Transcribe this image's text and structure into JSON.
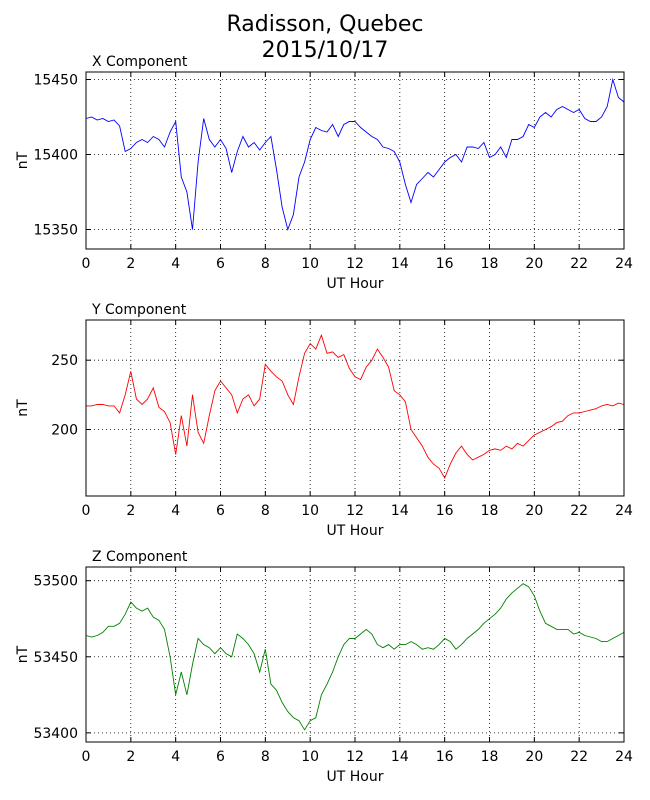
{
  "figure": {
    "title_line1": "Radisson, Quebec",
    "title_line2": "2015/10/17"
  },
  "chart_data": [
    {
      "type": "line",
      "title": "X Component",
      "xlabel": "UT Hour",
      "ylabel": "nT",
      "color": "#0000ff",
      "xlim": [
        0,
        24
      ],
      "ylim": [
        15337,
        15455
      ],
      "xticks": [
        0,
        2,
        4,
        6,
        8,
        10,
        12,
        14,
        16,
        18,
        20,
        22,
        24
      ],
      "yticks": [
        15350,
        15400,
        15450
      ],
      "grid": true,
      "x": [
        0,
        0.25,
        0.5,
        0.75,
        1,
        1.25,
        1.5,
        1.75,
        2,
        2.25,
        2.5,
        2.75,
        3,
        3.25,
        3.5,
        3.75,
        4,
        4.25,
        4.5,
        4.75,
        5,
        5.25,
        5.5,
        5.75,
        6,
        6.25,
        6.5,
        6.75,
        7,
        7.25,
        7.5,
        7.75,
        8,
        8.25,
        8.5,
        8.75,
        9,
        9.25,
        9.5,
        9.75,
        10,
        10.25,
        10.5,
        10.75,
        11,
        11.25,
        11.5,
        11.75,
        12,
        12.25,
        12.5,
        12.75,
        13,
        13.25,
        13.5,
        13.75,
        14,
        14.25,
        14.5,
        14.75,
        15,
        15.25,
        15.5,
        15.75,
        16,
        16.25,
        16.5,
        16.75,
        17,
        17.25,
        17.5,
        17.75,
        18,
        18.25,
        18.5,
        18.75,
        19,
        19.25,
        19.5,
        19.75,
        20,
        20.25,
        20.5,
        20.75,
        21,
        21.25,
        21.5,
        21.75,
        22,
        22.25,
        22.5,
        22.75,
        23,
        23.25,
        23.5,
        23.75,
        24
      ],
      "values": [
        15424,
        15425,
        15423,
        15424,
        15422,
        15423,
        15419,
        15402,
        15404,
        15408,
        15410,
        15408,
        15412,
        15410,
        15405,
        15415,
        15422,
        15385,
        15375,
        15350,
        15395,
        15424,
        15410,
        15405,
        15410,
        15404,
        15388,
        15402,
        15412,
        15405,
        15408,
        15403,
        15408,
        15412,
        15390,
        15365,
        15350,
        15360,
        15385,
        15395,
        15410,
        15418,
        15416,
        15415,
        15420,
        15412,
        15420,
        15422,
        15422,
        15418,
        15415,
        15412,
        15410,
        15405,
        15404,
        15402,
        15395,
        15380,
        15368,
        15380,
        15384,
        15388,
        15385,
        15390,
        15395,
        15398,
        15400,
        15395,
        15405,
        15405,
        15404,
        15408,
        15398,
        15400,
        15405,
        15398,
        15410,
        15410,
        15412,
        15420,
        15418,
        15425,
        15428,
        15425,
        15430,
        15432,
        15430,
        15428,
        15430,
        15424,
        15422,
        15422,
        15425,
        15432,
        15450,
        15438,
        15435
      ]
    },
    {
      "type": "line",
      "title": "Y Component",
      "xlabel": "UT Hour",
      "ylabel": "nT",
      "color": "#ff0000",
      "xlim": [
        0,
        24
      ],
      "ylim": [
        152,
        279
      ],
      "xticks": [
        0,
        2,
        4,
        6,
        8,
        10,
        12,
        14,
        16,
        18,
        20,
        22,
        24
      ],
      "yticks": [
        200,
        250
      ],
      "grid": true,
      "x": [
        0,
        0.25,
        0.5,
        0.75,
        1,
        1.25,
        1.5,
        1.75,
        2,
        2.25,
        2.5,
        2.75,
        3,
        3.25,
        3.5,
        3.75,
        4,
        4.25,
        4.5,
        4.75,
        5,
        5.25,
        5.5,
        5.75,
        6,
        6.25,
        6.5,
        6.75,
        7,
        7.25,
        7.5,
        7.75,
        8,
        8.25,
        8.5,
        8.75,
        9,
        9.25,
        9.5,
        9.75,
        10,
        10.25,
        10.5,
        10.75,
        11,
        11.25,
        11.5,
        11.75,
        12,
        12.25,
        12.5,
        12.75,
        13,
        13.25,
        13.5,
        13.75,
        14,
        14.25,
        14.5,
        14.75,
        15,
        15.25,
        15.5,
        15.75,
        16,
        16.25,
        16.5,
        16.75,
        17,
        17.25,
        17.5,
        17.75,
        18,
        18.25,
        18.5,
        18.75,
        19,
        19.25,
        19.5,
        19.75,
        20,
        20.25,
        20.5,
        20.75,
        21,
        21.25,
        21.5,
        21.75,
        22,
        22.25,
        22.5,
        22.75,
        23,
        23.25,
        23.5,
        23.75,
        24
      ],
      "values": [
        217,
        217,
        218,
        218,
        217,
        217,
        212,
        225,
        242,
        222,
        218,
        222,
        230,
        216,
        213,
        205,
        182,
        210,
        188,
        225,
        198,
        190,
        210,
        228,
        235,
        230,
        225,
        212,
        222,
        225,
        217,
        222,
        247,
        242,
        238,
        235,
        225,
        218,
        238,
        255,
        262,
        258,
        268,
        255,
        256,
        252,
        254,
        244,
        238,
        236,
        245,
        250,
        258,
        252,
        245,
        228,
        225,
        220,
        200,
        194,
        188,
        180,
        175,
        172,
        165,
        175,
        183,
        188,
        182,
        178,
        180,
        182,
        185,
        186,
        185,
        188,
        186,
        190,
        188,
        192,
        196,
        198,
        200,
        202,
        205,
        206,
        210,
        212,
        212,
        213,
        214,
        215,
        217,
        218,
        217,
        219,
        218
      ]
    },
    {
      "type": "line",
      "title": "Z Component",
      "xlabel": "UT Hour",
      "ylabel": "nT",
      "color": "#008000",
      "xlim": [
        0,
        24
      ],
      "ylim": [
        53394,
        53509
      ],
      "xticks": [
        0,
        2,
        4,
        6,
        8,
        10,
        12,
        14,
        16,
        18,
        20,
        22,
        24
      ],
      "yticks": [
        53400,
        53450,
        53500
      ],
      "grid": true,
      "x": [
        0,
        0.25,
        0.5,
        0.75,
        1,
        1.25,
        1.5,
        1.75,
        2,
        2.25,
        2.5,
        2.75,
        3,
        3.25,
        3.5,
        3.75,
        4,
        4.25,
        4.5,
        4.75,
        5,
        5.25,
        5.5,
        5.75,
        6,
        6.25,
        6.5,
        6.75,
        7,
        7.25,
        7.5,
        7.75,
        8,
        8.25,
        8.5,
        8.75,
        9,
        9.25,
        9.5,
        9.75,
        10,
        10.25,
        10.5,
        10.75,
        11,
        11.25,
        11.5,
        11.75,
        12,
        12.25,
        12.5,
        12.75,
        13,
        13.25,
        13.5,
        13.75,
        14,
        14.25,
        14.5,
        14.75,
        15,
        15.25,
        15.5,
        15.75,
        16,
        16.25,
        16.5,
        16.75,
        17,
        17.25,
        17.5,
        17.75,
        18,
        18.25,
        18.5,
        18.75,
        19,
        19.25,
        19.5,
        19.75,
        20,
        20.25,
        20.5,
        20.75,
        21,
        21.25,
        21.5,
        21.75,
        22,
        22.25,
        22.5,
        22.75,
        23,
        23.25,
        23.5,
        23.75,
        24
      ],
      "values": [
        53464,
        53463,
        53464,
        53466,
        53470,
        53470,
        53472,
        53478,
        53486,
        53482,
        53480,
        53482,
        53476,
        53474,
        53468,
        53450,
        53425,
        53440,
        53425,
        53445,
        53462,
        53458,
        53456,
        53452,
        53456,
        53452,
        53450,
        53465,
        53462,
        53458,
        53452,
        53440,
        53455,
        53432,
        53428,
        53420,
        53414,
        53410,
        53408,
        53402,
        53408,
        53410,
        53425,
        53432,
        53440,
        53450,
        53458,
        53462,
        53462,
        53465,
        53468,
        53465,
        53458,
        53456,
        53458,
        53455,
        53458,
        53458,
        53460,
        53458,
        53455,
        53456,
        53455,
        53458,
        53462,
        53460,
        53455,
        53458,
        53462,
        53465,
        53468,
        53472,
        53475,
        53478,
        53482,
        53488,
        53492,
        53495,
        53498,
        53496,
        53490,
        53480,
        53472,
        53470,
        53468,
        53468,
        53468,
        53465,
        53466,
        53464,
        53463,
        53462,
        53460,
        53460,
        53462,
        53464,
        53466
      ]
    }
  ]
}
